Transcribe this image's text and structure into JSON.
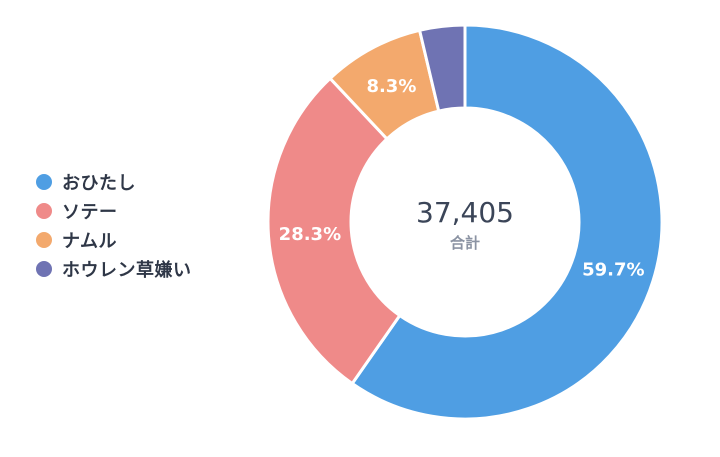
{
  "chart_data": {
    "type": "pie",
    "variant": "donut",
    "categories": [
      "おひたし",
      "ソテー",
      "ナムル",
      "ホウレン草嫌い"
    ],
    "values": [
      59.7,
      28.3,
      8.3,
      3.7
    ],
    "labels": [
      "59.7%",
      "28.3%",
      "8.3%",
      ""
    ],
    "colors": [
      "#4f9ee3",
      "#ef8a89",
      "#f3a96d",
      "#6f73b3"
    ],
    "center_value": "37,405",
    "center_label": "合計",
    "legend_position": "left"
  }
}
